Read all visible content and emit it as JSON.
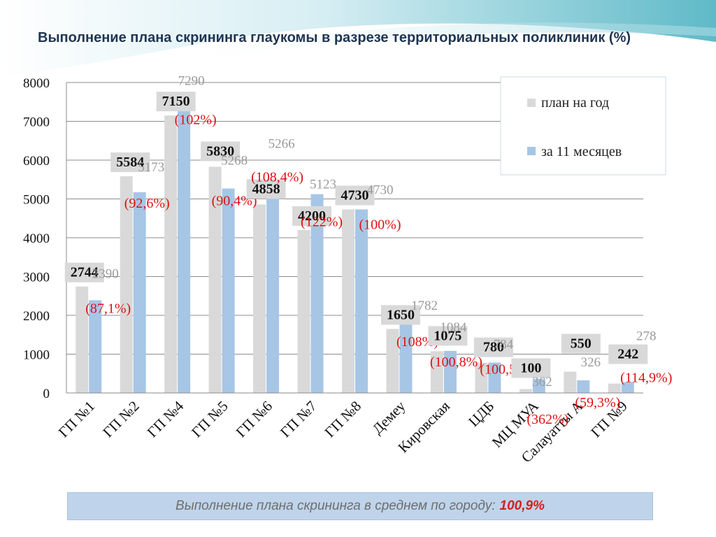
{
  "title": "Выполнение плана скрининга глаукомы в разрезе территориальных поликлиник (%)",
  "footer": {
    "text": "Выполнение плана скрининга в среднем по городу:",
    "value": "100,9%"
  },
  "colors": {
    "plan": "#d9d9d9",
    "actual": "#a7c6e6",
    "percent_text": "#e01010",
    "actual_label_text": "#9a9a9a",
    "plan_label_text": "#111111",
    "plan_label_box": "#d9d9d9"
  },
  "chart_data": {
    "type": "bar",
    "title": "",
    "xlabel": "",
    "ylabel": "",
    "ylim": [
      0,
      8000
    ],
    "yticks": [
      0,
      1000,
      2000,
      3000,
      4000,
      5000,
      6000,
      7000,
      8000
    ],
    "grid": true,
    "legend_position": "top-right",
    "categories": [
      "ГП №1",
      "ГП №2",
      "ГП №4",
      "ГП №5",
      "ГП №6",
      "ГП  №7",
      "ГП №8",
      "Демеу",
      "Кировская",
      "ЦДБ",
      "МЦ МУА",
      "Салауатты А",
      "ГП №9"
    ],
    "series": [
      {
        "name": "план на год",
        "values": [
          2744,
          5584,
          7150,
          5830,
          4858,
          4200,
          4730,
          1650,
          1075,
          780,
          100,
          550,
          242
        ]
      },
      {
        "name": "за 11 месяцев",
        "values": [
          2390,
          5173,
          7290,
          5268,
          5266,
          5123,
          4730,
          1782,
          1084,
          784,
          362,
          326,
          278
        ]
      }
    ],
    "plan_labels": [
      "2744",
      "5584",
      "7150",
      "5830",
      "4858",
      "4200",
      "4730",
      "1650",
      "1075",
      "780",
      "100",
      "550",
      "242"
    ],
    "actual_labels": [
      "2390",
      "5173",
      "7290",
      "5268",
      "5266",
      "5123",
      "4730",
      "1782",
      "1084",
      "784",
      "362",
      "326",
      "278"
    ],
    "percent_labels": [
      "(87,1%)",
      "(92,6%)",
      "(102%)",
      "(90,4%)",
      "(108,4%)",
      "(122%)",
      "(100%)",
      "(108%)",
      "(100,8%)",
      "(100,5%)",
      "(362%)",
      "(59,3%)",
      "(114,9%)"
    ]
  }
}
